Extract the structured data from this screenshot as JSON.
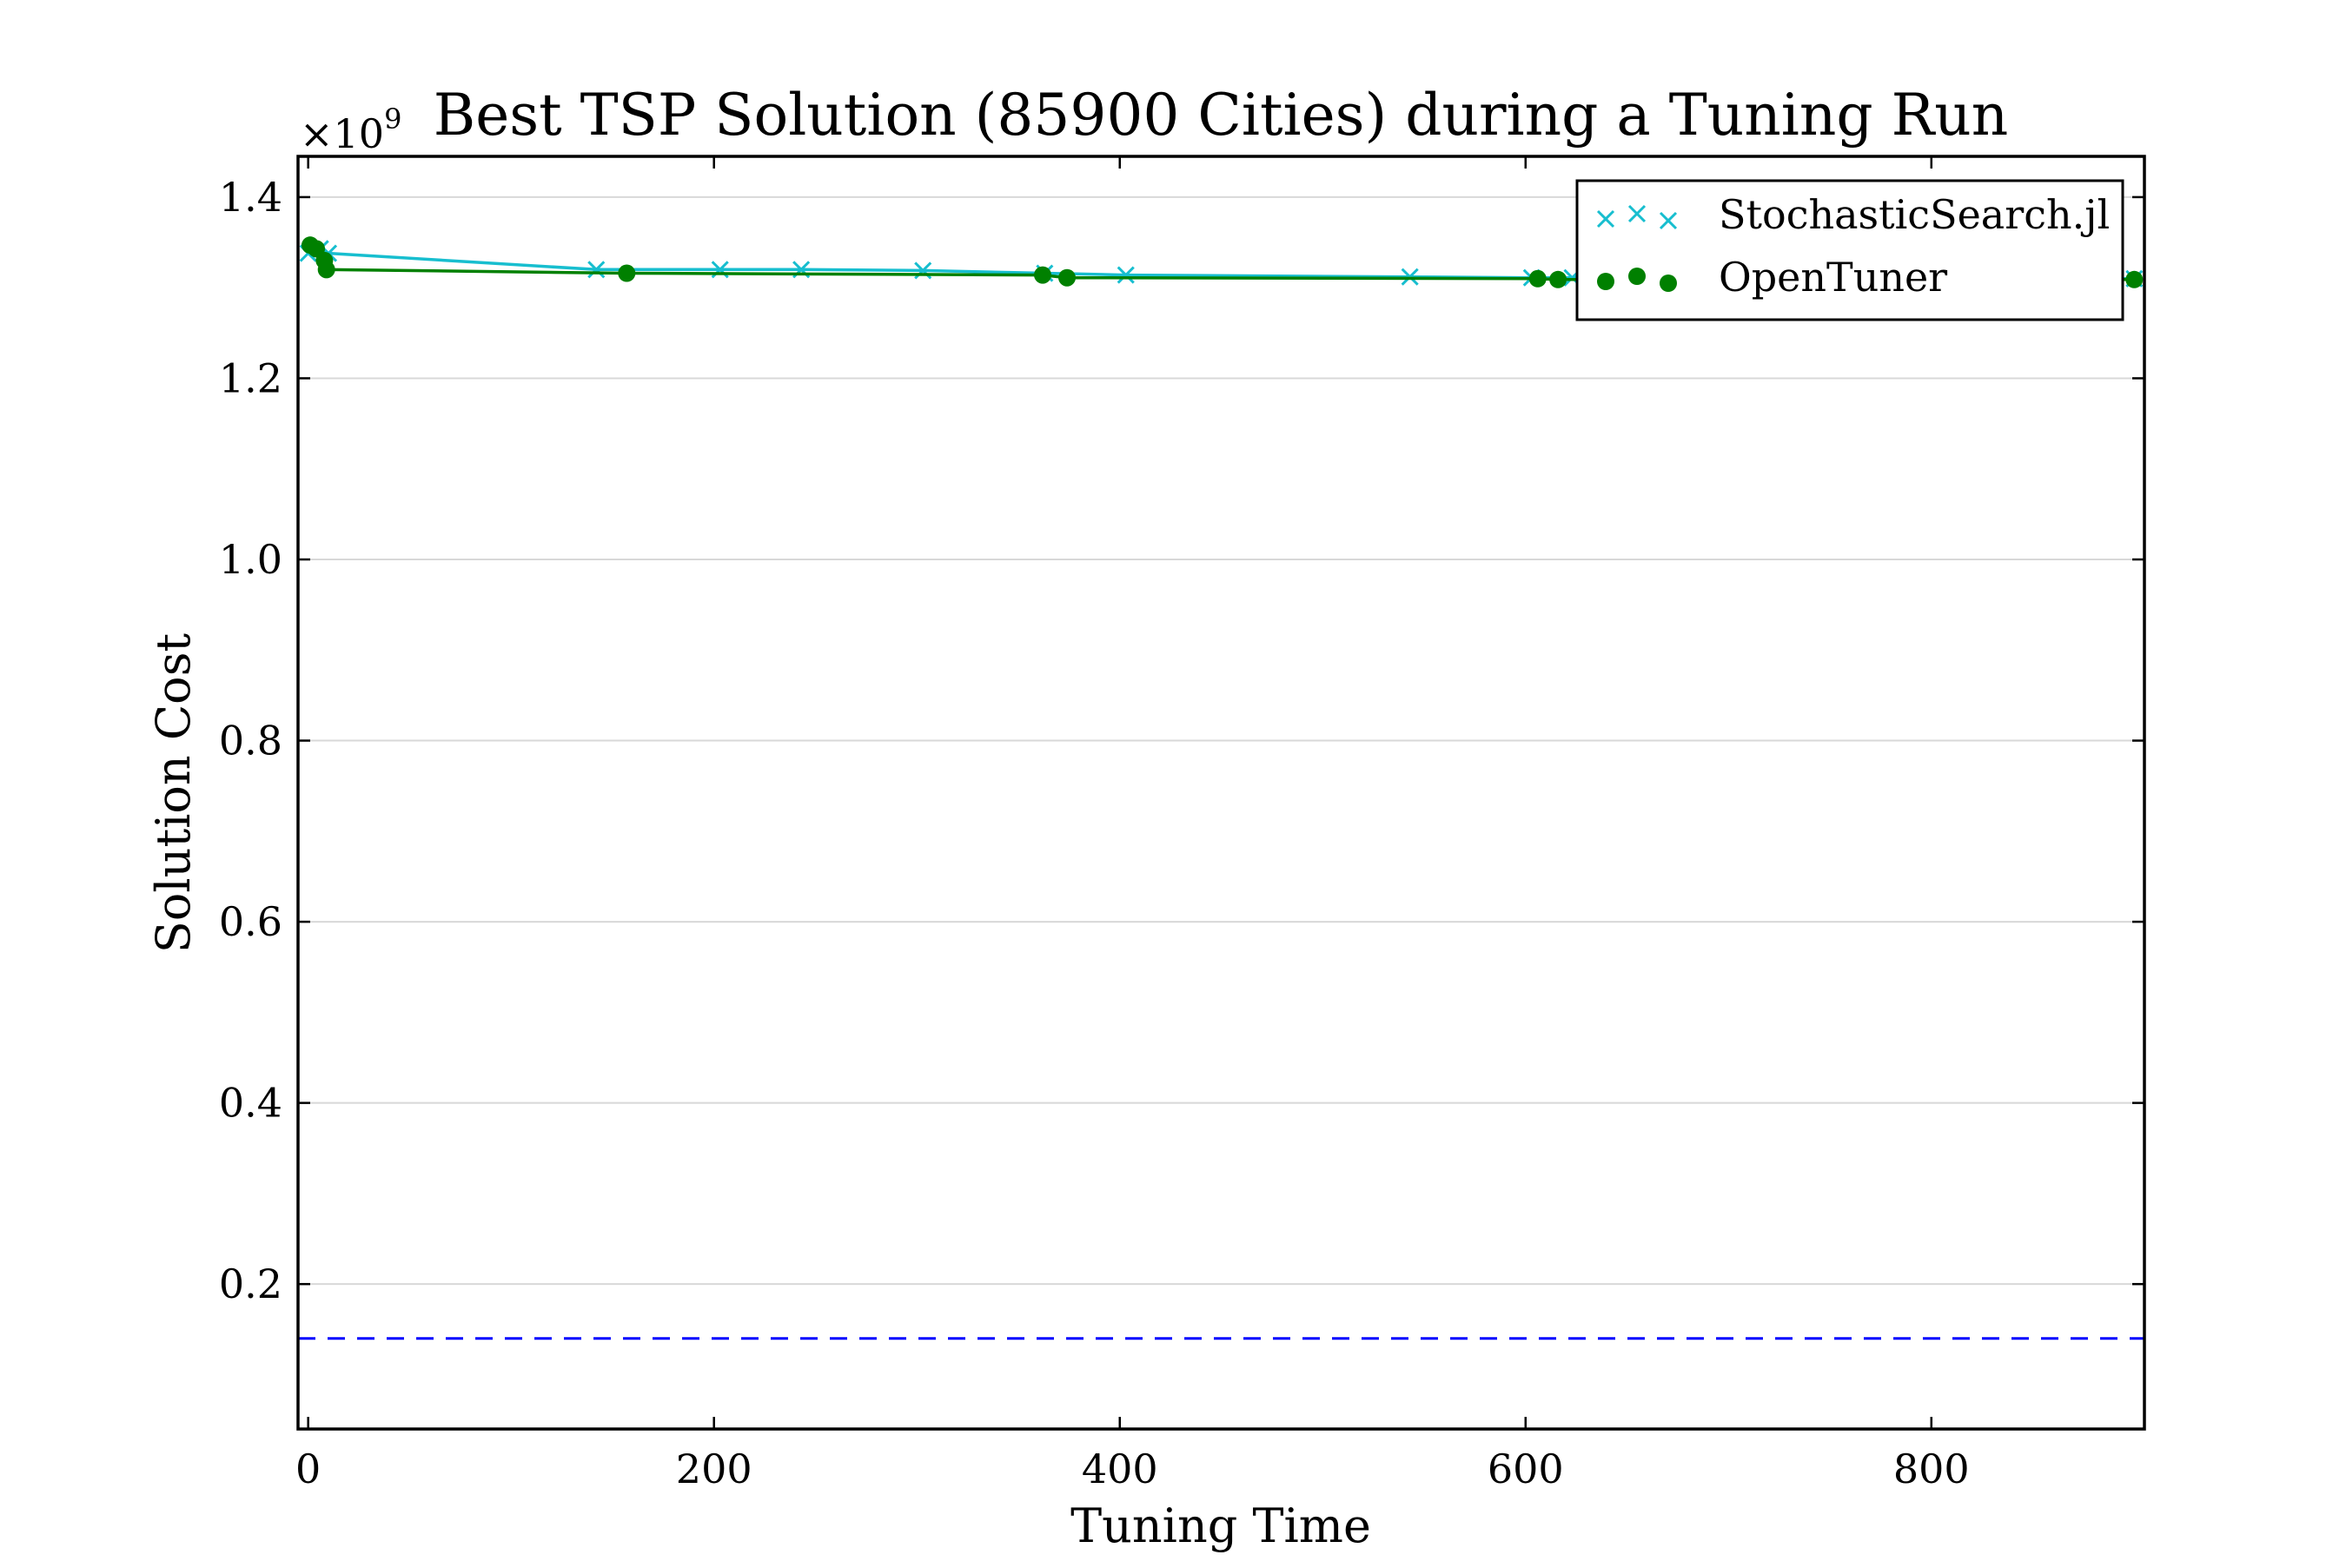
{
  "chart_data": {
    "type": "line",
    "title": "Best TSP Solution (85900 Cities) during a Tuning Run",
    "xlabel": "Tuning Time",
    "ylabel": "Solution Cost",
    "y_multiplier_label": "×10",
    "y_multiplier_exponent": "9",
    "xlim": [
      -5,
      905
    ],
    "ylim": [
      0.04,
      1.445
    ],
    "x_ticks": [
      0,
      200,
      400,
      600,
      800
    ],
    "x_tick_labels": [
      "0",
      "200",
      "400",
      "600",
      "800"
    ],
    "y_ticks": [
      0.2,
      0.4,
      0.6,
      0.8,
      1.0,
      1.2,
      1.4
    ],
    "y_tick_labels": [
      "0.2",
      "0.4",
      "0.6",
      "0.8",
      "1.0",
      "1.2",
      "1.4"
    ],
    "grid": "horizontal",
    "legend_placement": "top-right",
    "series": [
      {
        "name": "StochasticSearch.jl",
        "color": "#17becf",
        "marker": "x",
        "x": [
          0,
          6,
          10,
          142,
          203,
          243,
          303,
          363,
          403,
          543,
          603,
          623,
          683,
          743,
          803,
          863,
          900
        ],
        "y": [
          1.338,
          1.343,
          1.338,
          1.32,
          1.32,
          1.32,
          1.319,
          1.316,
          1.314,
          1.312,
          1.311,
          1.311,
          1.31,
          1.31,
          1.31,
          1.31,
          1.31
        ]
      },
      {
        "name": "OpenTuner",
        "color": "#008000",
        "marker": "circle",
        "x": [
          1,
          4,
          8,
          9,
          157,
          362,
          374,
          606,
          616,
          700,
          800,
          900
        ],
        "y": [
          1.347,
          1.343,
          1.33,
          1.32,
          1.316,
          1.314,
          1.311,
          1.31,
          1.309,
          1.309,
          1.309,
          1.309
        ]
      },
      {
        "name": "",
        "color": "#0000ff",
        "style": "dashed",
        "x": [
          -5,
          905
        ],
        "y": [
          0.14,
          0.14
        ]
      }
    ]
  }
}
